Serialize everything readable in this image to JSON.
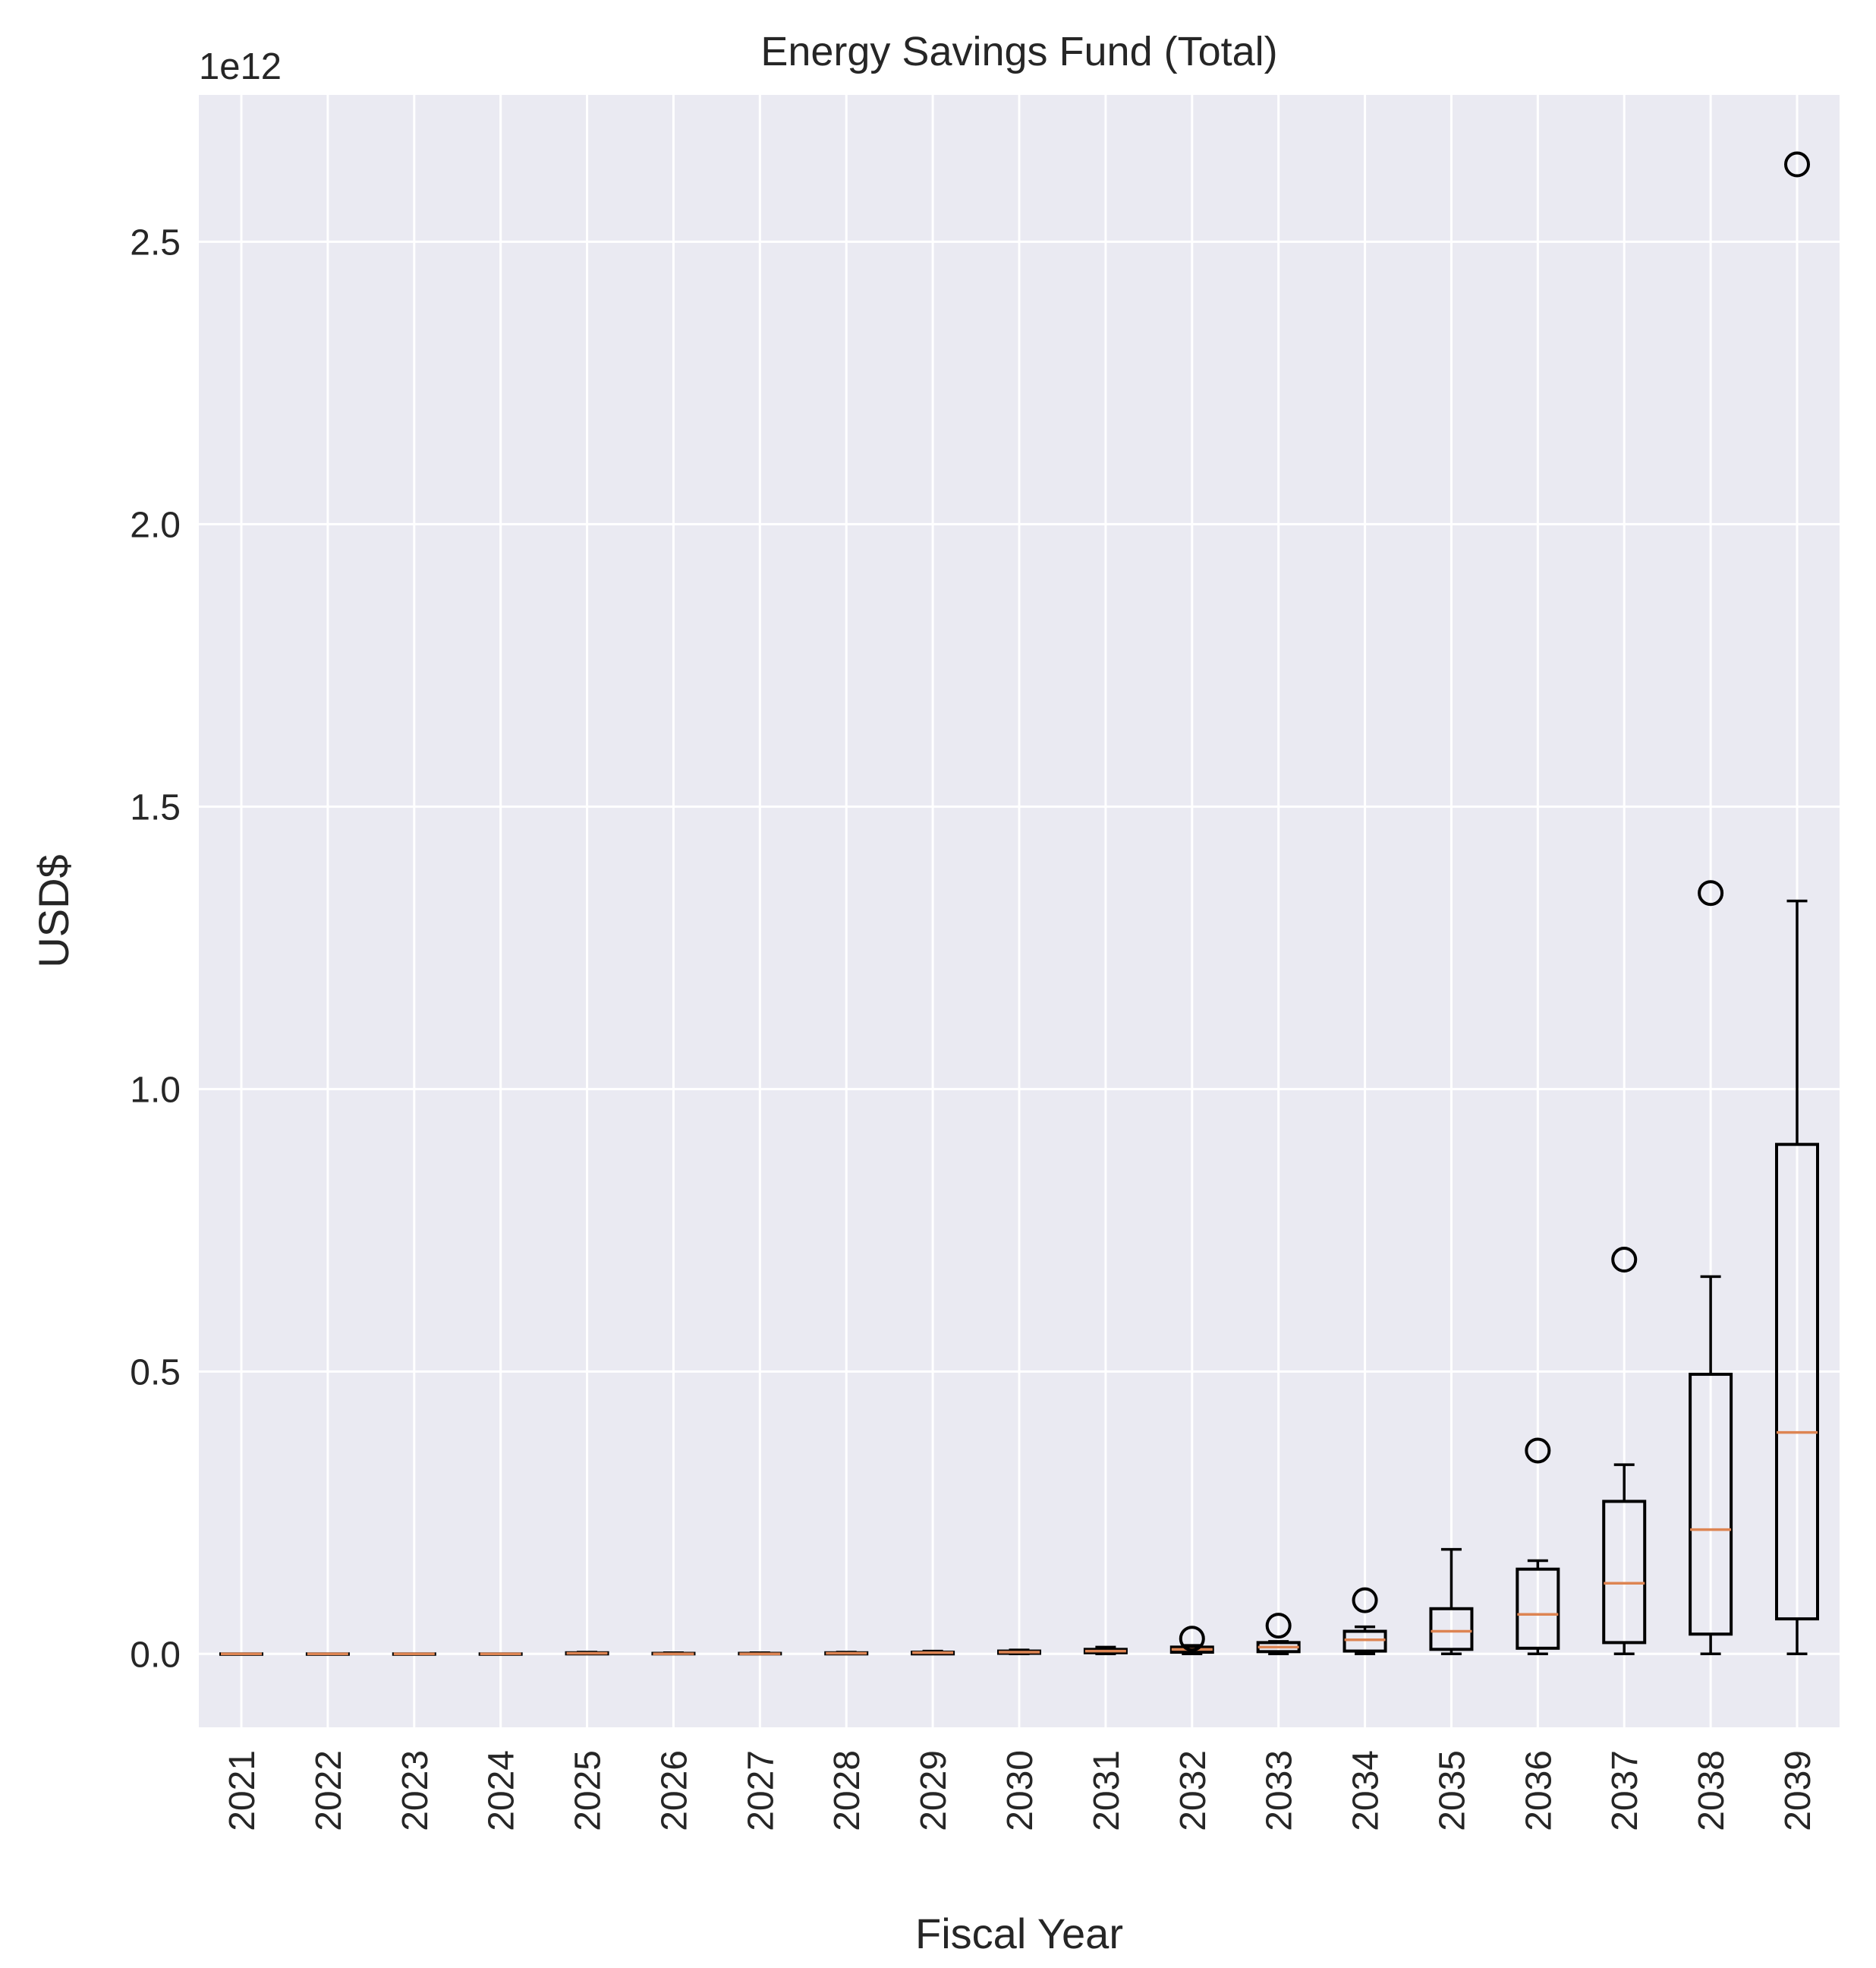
{
  "chart_data": {
    "type": "box",
    "title": "Energy Savings Fund (Total)",
    "xlabel": "Fiscal Year",
    "ylabel": "USD$",
    "y_offset_label": "1e12",
    "y_unit_scale": 1000000000000.0,
    "ylim": [
      -0.13,
      2.76
    ],
    "yticks": [
      0.0,
      0.5,
      1.0,
      1.5,
      2.0,
      2.5
    ],
    "ytick_labels": [
      "0.0",
      "0.5",
      "1.0",
      "1.5",
      "2.0",
      "2.5"
    ],
    "grid": true,
    "categories": [
      "2021",
      "2022",
      "2023",
      "2024",
      "2025",
      "2026",
      "2027",
      "2028",
      "2029",
      "2030",
      "2031",
      "2032",
      "2033",
      "2034",
      "2035",
      "2036",
      "2037",
      "2038",
      "2039"
    ],
    "boxes": [
      {
        "whislo": 0.0,
        "q1": 0.0,
        "med": 0.0,
        "q3": 0.0,
        "whishi": 0.0,
        "fliers": []
      },
      {
        "whislo": 0.0,
        "q1": 0.0,
        "med": 0.0,
        "q3": 0.0,
        "whishi": 0.0,
        "fliers": []
      },
      {
        "whislo": 0.0,
        "q1": 0.0,
        "med": 0.0,
        "q3": 0.0,
        "whishi": 0.0,
        "fliers": []
      },
      {
        "whislo": 0.0,
        "q1": 0.0,
        "med": 0.0,
        "q3": 0.0,
        "whishi": 0.0,
        "fliers": []
      },
      {
        "whislo": 0.0,
        "q1": 0.0,
        "med": 0.001,
        "q3": 0.002,
        "whishi": 0.003,
        "fliers": []
      },
      {
        "whislo": 0.0,
        "q1": 0.0,
        "med": 0.0,
        "q3": 0.001,
        "whishi": 0.002,
        "fliers": []
      },
      {
        "whislo": 0.0,
        "q1": 0.0,
        "med": 0.0,
        "q3": 0.001,
        "whishi": 0.002,
        "fliers": []
      },
      {
        "whislo": 0.0,
        "q1": 0.0,
        "med": 0.001,
        "q3": 0.002,
        "whishi": 0.003,
        "fliers": []
      },
      {
        "whislo": 0.0,
        "q1": 0.0,
        "med": 0.002,
        "q3": 0.003,
        "whishi": 0.005,
        "fliers": []
      },
      {
        "whislo": 0.0,
        "q1": 0.001,
        "med": 0.003,
        "q3": 0.005,
        "whishi": 0.007,
        "fliers": []
      },
      {
        "whislo": 0.0,
        "q1": 0.002,
        "med": 0.005,
        "q3": 0.008,
        "whishi": 0.012,
        "fliers": []
      },
      {
        "whislo": 0.0,
        "q1": 0.003,
        "med": 0.008,
        "q3": 0.012,
        "whishi": 0.015,
        "fliers": [
          0.027
        ]
      },
      {
        "whislo": 0.0,
        "q1": 0.004,
        "med": 0.012,
        "q3": 0.02,
        "whishi": 0.022,
        "fliers": [
          0.05
        ]
      },
      {
        "whislo": 0.0,
        "q1": 0.005,
        "med": 0.025,
        "q3": 0.04,
        "whishi": 0.048,
        "fliers": [
          0.095
        ]
      },
      {
        "whislo": 0.0,
        "q1": 0.008,
        "med": 0.04,
        "q3": 0.08,
        "whishi": 0.185,
        "fliers": []
      },
      {
        "whislo": 0.0,
        "q1": 0.01,
        "med": 0.07,
        "q3": 0.15,
        "whishi": 0.165,
        "fliers": [
          0.36
        ]
      },
      {
        "whislo": 0.0,
        "q1": 0.02,
        "med": 0.125,
        "q3": 0.27,
        "whishi": 0.335,
        "fliers": [
          0.698
        ]
      },
      {
        "whislo": 0.0,
        "q1": 0.035,
        "med": 0.22,
        "q3": 0.495,
        "whishi": 0.668,
        "fliers": [
          1.347
        ]
      },
      {
        "whislo": 0.0,
        "q1": 0.062,
        "med": 0.392,
        "q3": 0.902,
        "whishi": 1.333,
        "fliers": [
          2.637
        ]
      }
    ],
    "colors": {
      "plot_bg": "#eaeaf2",
      "grid": "#ffffff",
      "box": "#000000",
      "median": "#dd8452",
      "text": "#262626"
    }
  }
}
